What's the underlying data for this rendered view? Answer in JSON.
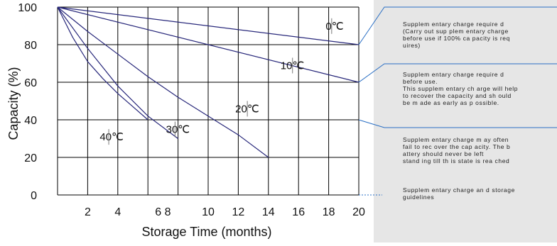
{
  "chart_data": {
    "type": "line",
    "xlabel": "Storage Time (months)",
    "ylabel": "Capacity  (%)",
    "xlim": [
      0,
      20
    ],
    "ylim": [
      0,
      100
    ],
    "x_tick_labels": [
      {
        "value": 2,
        "label": "2"
      },
      {
        "value": 4,
        "label": "4"
      },
      {
        "value": 6,
        "label": "6 8"
      },
      {
        "value": 10,
        "label": "10"
      },
      {
        "value": 12,
        "label": "12"
      },
      {
        "value": 14,
        "label": "14"
      },
      {
        "value": 16,
        "label": "16"
      },
      {
        "value": 18,
        "label": "18"
      },
      {
        "value": 20,
        "label": "20"
      }
    ],
    "x_gridlines": [
      2,
      4,
      6,
      8,
      10,
      12,
      14,
      16,
      18,
      20
    ],
    "y_ticks": [
      0,
      20,
      40,
      60,
      80,
      100
    ],
    "grid": true,
    "series": [
      {
        "name": "0℃",
        "x": [
          0,
          20
        ],
        "y": [
          100,
          80
        ]
      },
      {
        "name": "10℃",
        "x": [
          0,
          20
        ],
        "y": [
          100,
          60
        ]
      },
      {
        "name": "20℃",
        "x": [
          0,
          2,
          4,
          6,
          8,
          10,
          12,
          14
        ],
        "y": [
          100,
          87,
          75,
          63,
          52,
          42,
          32,
          20
        ]
      },
      {
        "name": "30℃",
        "x": [
          0,
          2,
          4,
          6,
          8
        ],
        "y": [
          100,
          78,
          58,
          42,
          30
        ]
      },
      {
        "name": "40℃",
        "x": [
          0,
          1,
          2,
          3,
          4,
          5,
          6
        ],
        "y": [
          100,
          84,
          71,
          62,
          54,
          47,
          40
        ]
      }
    ],
    "zones": [
      {
        "boundary_y": 80,
        "text": "Supplementary charge required (Carry out supplementary charge before use if 100% capacity is required)"
      },
      {
        "boundary_y": 60,
        "text": "Supplementary charge required before use. This supplementary charge will help to recover the capacity and should be made as early as possible."
      },
      {
        "boundary_y": 40,
        "text": "Supplementary charge may often fail to recover the capacity. The battery should never be left standing till this state is reached"
      },
      {
        "boundary_y": 0,
        "text": "Supplementary charge and storage guidelines"
      }
    ]
  },
  "note_lines": [
    [
      "Supplem entary charge require d",
      "(Carry out sup plem entary charge",
      "before use if 100% ca pacity is req",
      "uires)"
    ],
    [
      "Supplem entary charge require d",
      "before use.",
      "This supplem entary ch arge will help",
      "to recover the  capacity and sh ould",
      "be m ade    as early   as p ossible."
    ],
    [
      "Supplem entary charge m ay often",
      "fail to  rec over the cap acity. The b",
      "attery should   never be left",
      "stand ing till th is state is rea ched"
    ],
    [
      "Supplem entary charge an d storage",
      "guidelines"
    ]
  ],
  "colors": {
    "curve": "#27277a",
    "zone_connector": "#2a6fc4",
    "note_panel": "#e6e6e6",
    "grid": "#000000"
  }
}
